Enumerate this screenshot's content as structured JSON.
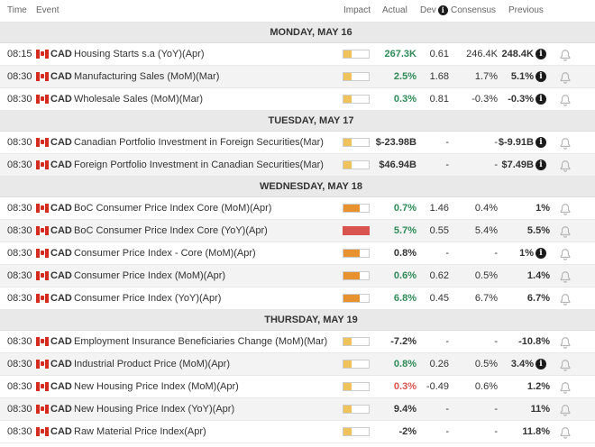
{
  "header": {
    "time": "Time",
    "event": "Event",
    "impact": "Impact",
    "actual": "Actual",
    "dev": "Dev",
    "consensus": "Consensus",
    "previous": "Previous"
  },
  "colors": {
    "low": "#f0c25b",
    "med": "#e8912f",
    "high": "#d9534f"
  },
  "days": [
    {
      "label": "MONDAY, MAY 16",
      "rows": [
        {
          "time": "08:15",
          "cur": "CAD",
          "event": "Housing Starts s.a (YoY)(Apr)",
          "impact": "low",
          "actual": "267.3K",
          "actual_color": "green",
          "dev": "0.61",
          "cons": "246.4K",
          "prev": "248.4K",
          "info": true
        },
        {
          "time": "08:30",
          "cur": "CAD",
          "event": "Manufacturing Sales (MoM)(Mar)",
          "impact": "low",
          "actual": "2.5%",
          "actual_color": "green",
          "dev": "1.68",
          "cons": "1.7%",
          "prev": "5.1%",
          "info": true
        },
        {
          "time": "08:30",
          "cur": "CAD",
          "event": "Wholesale Sales (MoM)(Mar)",
          "impact": "low",
          "actual": "0.3%",
          "actual_color": "green",
          "dev": "0.81",
          "cons": "-0.3%",
          "prev": "-0.3%",
          "info": true
        }
      ]
    },
    {
      "label": "TUESDAY, MAY 17",
      "rows": [
        {
          "time": "08:30",
          "cur": "CAD",
          "event": "Canadian Portfolio Investment in Foreign Securities(Mar)",
          "impact": "low",
          "actual": "$-23.98B",
          "actual_color": "dark",
          "dev": "-",
          "cons": "-",
          "prev": "$-9.91B",
          "info": true
        },
        {
          "time": "08:30",
          "cur": "CAD",
          "event": "Foreign Portfolio Investment in Canadian Securities(Mar)",
          "impact": "low",
          "actual": "$46.94B",
          "actual_color": "dark",
          "dev": "-",
          "cons": "-",
          "prev": "$7.49B",
          "info": true
        }
      ]
    },
    {
      "label": "WEDNESDAY, MAY 18",
      "rows": [
        {
          "time": "08:30",
          "cur": "CAD",
          "event": "BoC Consumer Price Index Core (MoM)(Apr)",
          "impact": "med",
          "actual": "0.7%",
          "actual_color": "green",
          "dev": "1.46",
          "cons": "0.4%",
          "prev": "1%",
          "info": false
        },
        {
          "time": "08:30",
          "cur": "CAD",
          "event": "BoC Consumer Price Index Core (YoY)(Apr)",
          "impact": "high",
          "actual": "5.7%",
          "actual_color": "green",
          "dev": "0.55",
          "cons": "5.4%",
          "prev": "5.5%",
          "info": false
        },
        {
          "time": "08:30",
          "cur": "CAD",
          "event": "Consumer Price Index - Core (MoM)(Apr)",
          "impact": "med",
          "actual": "0.8%",
          "actual_color": "dark",
          "dev": "-",
          "cons": "-",
          "prev": "1%",
          "info": true
        },
        {
          "time": "08:30",
          "cur": "CAD",
          "event": "Consumer Price Index (MoM)(Apr)",
          "impact": "med",
          "actual": "0.6%",
          "actual_color": "green",
          "dev": "0.62",
          "cons": "0.5%",
          "prev": "1.4%",
          "info": false
        },
        {
          "time": "08:30",
          "cur": "CAD",
          "event": "Consumer Price Index (YoY)(Apr)",
          "impact": "med",
          "actual": "6.8%",
          "actual_color": "green",
          "dev": "0.45",
          "cons": "6.7%",
          "prev": "6.7%",
          "info": false
        }
      ]
    },
    {
      "label": "THURSDAY, MAY 19",
      "rows": [
        {
          "time": "08:30",
          "cur": "CAD",
          "event": "Employment Insurance Beneficiaries Change (MoM)(Mar)",
          "impact": "low",
          "actual": "-7.2%",
          "actual_color": "dark",
          "dev": "-",
          "cons": "-",
          "prev": "-10.8%",
          "info": false
        },
        {
          "time": "08:30",
          "cur": "CAD",
          "event": "Industrial Product Price (MoM)(Apr)",
          "impact": "low",
          "actual": "0.8%",
          "actual_color": "green",
          "dev": "0.26",
          "cons": "0.5%",
          "prev": "3.4%",
          "info": true
        },
        {
          "time": "08:30",
          "cur": "CAD",
          "event": "New Housing Price Index (MoM)(Apr)",
          "impact": "low",
          "actual": "0.3%",
          "actual_color": "red",
          "dev": "-0.49",
          "cons": "0.6%",
          "prev": "1.2%",
          "info": false
        },
        {
          "time": "08:30",
          "cur": "CAD",
          "event": "New Housing Price Index (YoY)(Apr)",
          "impact": "low",
          "actual": "9.4%",
          "actual_color": "dark",
          "dev": "-",
          "cons": "-",
          "prev": "11%",
          "info": false
        },
        {
          "time": "08:30",
          "cur": "CAD",
          "event": "Raw Material Price Index(Apr)",
          "impact": "low",
          "actual": "-2%",
          "actual_color": "dark",
          "dev": "-",
          "cons": "-",
          "prev": "11.8%",
          "info": false
        }
      ]
    }
  ]
}
